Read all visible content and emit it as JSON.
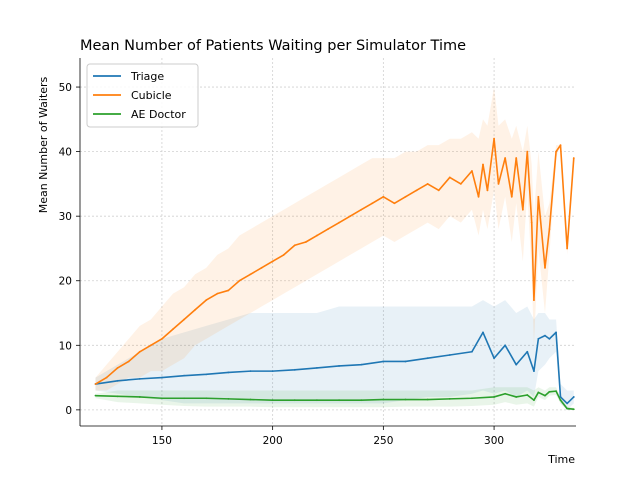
{
  "chart_data": {
    "type": "line",
    "title": "Mean Number of Patients Waiting per Simulator Time",
    "xlabel": "Time",
    "ylabel": "Mean Number of Waiters",
    "xlim": [
      113,
      337
    ],
    "ylim": [
      -2.5,
      54.5
    ],
    "xticks": [
      150,
      200,
      250,
      300
    ],
    "yticks": [
      0,
      10,
      20,
      30,
      40,
      50
    ],
    "grid": true,
    "legend": "top-left",
    "series": [
      {
        "name": "Triage",
        "color": "#1f77b4",
        "x": [
          120,
          130,
          140,
          150,
          160,
          170,
          180,
          190,
          200,
          210,
          220,
          230,
          240,
          250,
          260,
          270,
          280,
          290,
          295,
          300,
          305,
          310,
          315,
          318,
          320,
          323,
          325,
          328,
          330,
          333,
          336
        ],
        "y": [
          4,
          4.5,
          4.8,
          5,
          5.3,
          5.5,
          5.8,
          6,
          6,
          6.2,
          6.5,
          6.8,
          7,
          7.5,
          7.5,
          8,
          8.5,
          9,
          12,
          8,
          10,
          7,
          9,
          6,
          11,
          11.5,
          11,
          12,
          2,
          1,
          2
        ],
        "band_upper": [
          5,
          7,
          9,
          11,
          12,
          13,
          14,
          15,
          15,
          15,
          15,
          16,
          16,
          16,
          16,
          16,
          16,
          16,
          17,
          16,
          17,
          15,
          16,
          14,
          15,
          15,
          14,
          14,
          4,
          3,
          3
        ],
        "band_lower": [
          3,
          2.5,
          2,
          1.5,
          1,
          1,
          1,
          1,
          1,
          1,
          1,
          1,
          1,
          1,
          1.5,
          2,
          2,
          2.5,
          3,
          2.5,
          3,
          2,
          3,
          2,
          6,
          7,
          8,
          9,
          1,
          0,
          1
        ]
      },
      {
        "name": "Cubicle",
        "color": "#ff7f0e",
        "x": [
          120,
          125,
          130,
          135,
          140,
          145,
          150,
          155,
          160,
          165,
          170,
          175,
          180,
          185,
          190,
          195,
          200,
          205,
          210,
          215,
          220,
          225,
          230,
          235,
          240,
          245,
          250,
          255,
          260,
          265,
          270,
          275,
          280,
          285,
          290,
          293,
          295,
          297,
          300,
          302,
          305,
          308,
          310,
          313,
          315,
          317,
          318,
          320,
          323,
          325,
          328,
          330,
          333,
          336
        ],
        "y": [
          4,
          5,
          6.5,
          7.5,
          9,
          10,
          11,
          12.5,
          14,
          15.5,
          17,
          18,
          18.5,
          20,
          21,
          22,
          23,
          24,
          25.5,
          26,
          27,
          28,
          29,
          30,
          31,
          32,
          33,
          32,
          33,
          34,
          35,
          34,
          36,
          35,
          37,
          33,
          38,
          34,
          42,
          35,
          39,
          33,
          39,
          31,
          40,
          29,
          17,
          33,
          22,
          28,
          40,
          41,
          25,
          39
        ],
        "band_upper": [
          5,
          7,
          9,
          11,
          13,
          14,
          16,
          18,
          19,
          21,
          22,
          24,
          25,
          27,
          28,
          29,
          30,
          31,
          32,
          33,
          34,
          35,
          36,
          37,
          38,
          39,
          39,
          39,
          40,
          40,
          41,
          41,
          42,
          42,
          43,
          42,
          45,
          44,
          50,
          44,
          45,
          42,
          44,
          40,
          44,
          38,
          30,
          40,
          30,
          32,
          41,
          41,
          26,
          39
        ],
        "band_lower": [
          3,
          3,
          4,
          5,
          5,
          6,
          6,
          7,
          8,
          10,
          11,
          12,
          13,
          14,
          15,
          16,
          17,
          18,
          19,
          20,
          21,
          22,
          23,
          24,
          25,
          26,
          27,
          26,
          27,
          28,
          29,
          28,
          30,
          29,
          31,
          27,
          31,
          28,
          34,
          28,
          33,
          26,
          32,
          23,
          34,
          21,
          10,
          25,
          15,
          24,
          39,
          41,
          24,
          39
        ]
      },
      {
        "name": "AE Doctor",
        "color": "#2ca02c",
        "x": [
          120,
          130,
          140,
          150,
          160,
          170,
          180,
          190,
          200,
          210,
          220,
          230,
          240,
          250,
          260,
          270,
          280,
          290,
          300,
          305,
          310,
          315,
          318,
          320,
          323,
          325,
          328,
          330,
          333,
          336
        ],
        "y": [
          2.2,
          2.1,
          2,
          1.8,
          1.8,
          1.8,
          1.7,
          1.6,
          1.5,
          1.5,
          1.5,
          1.5,
          1.5,
          1.6,
          1.6,
          1.6,
          1.7,
          1.8,
          2,
          2.5,
          2,
          2.3,
          1.5,
          2.7,
          2.2,
          2.8,
          2.9,
          1.5,
          0.2,
          0.1
        ],
        "band_upper": [
          2.5,
          3,
          3,
          3,
          3,
          3,
          3,
          3,
          3,
          3,
          3,
          3,
          3,
          3,
          3,
          3,
          3,
          3,
          3.5,
          3.5,
          3.5,
          3.5,
          3,
          3.5,
          3,
          3.5,
          3.5,
          2,
          0.5,
          0.3
        ],
        "band_lower": [
          1.8,
          1.2,
          1,
          0.8,
          0.6,
          0.5,
          0.5,
          0.5,
          0.4,
          0.4,
          0.4,
          0.4,
          0.4,
          0.4,
          0.5,
          0.5,
          0.5,
          0.6,
          0.8,
          1.2,
          0.8,
          1,
          0.5,
          2,
          1.5,
          2.2,
          2.3,
          1,
          0,
          0
        ]
      }
    ]
  }
}
